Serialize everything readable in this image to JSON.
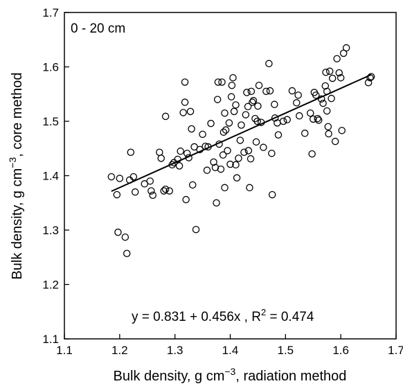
{
  "chart_data": {
    "type": "scatter",
    "panel_label": "0 - 20 cm",
    "xlabel": {
      "main": "Bulk density, g cm",
      "sup": "−3",
      "suffix": ", radiation method"
    },
    "ylabel": {
      "main": "Bulk density, g cm",
      "sup": "−3",
      "suffix": ", core method"
    },
    "xlim": [
      1.1,
      1.7
    ],
    "ylim": [
      1.1,
      1.7
    ],
    "xticks": [
      "1.1",
      "1.2",
      "1.3",
      "1.4",
      "1.5",
      "1.6",
      "1.7"
    ],
    "yticks": [
      "1.1",
      "1.2",
      "1.3",
      "1.4",
      "1.5",
      "1.6",
      "1.7"
    ],
    "grid": false,
    "regression": {
      "intercept": 0.831,
      "slope": 0.456,
      "x_range": [
        1.185,
        1.655
      ]
    },
    "equation": {
      "main": "y = 0.831 + 0.456x , R",
      "sup": "2",
      "suffix": " = 0.474"
    },
    "points": [
      [
        1.185,
        1.398
      ],
      [
        1.195,
        1.365
      ],
      [
        1.2,
        1.395
      ],
      [
        1.197,
        1.296
      ],
      [
        1.21,
        1.287
      ],
      [
        1.213,
        1.257
      ],
      [
        1.218,
        1.392
      ],
      [
        1.22,
        1.443
      ],
      [
        1.225,
        1.398
      ],
      [
        1.228,
        1.37
      ],
      [
        1.245,
        1.385
      ],
      [
        1.255,
        1.39
      ],
      [
        1.257,
        1.372
      ],
      [
        1.26,
        1.364
      ],
      [
        1.272,
        1.443
      ],
      [
        1.275,
        1.432
      ],
      [
        1.28,
        1.372
      ],
      [
        1.283,
        1.375
      ],
      [
        1.283,
        1.509
      ],
      [
        1.29,
        1.372
      ],
      [
        1.295,
        1.42
      ],
      [
        1.298,
        1.424
      ],
      [
        1.305,
        1.43
      ],
      [
        1.308,
        1.418
      ],
      [
        1.31,
        1.445
      ],
      [
        1.315,
        1.516
      ],
      [
        1.318,
        1.535
      ],
      [
        1.318,
        1.572
      ],
      [
        1.32,
        1.356
      ],
      [
        1.322,
        1.441
      ],
      [
        1.325,
        1.433
      ],
      [
        1.328,
        1.518
      ],
      [
        1.33,
        1.486
      ],
      [
        1.332,
        1.383
      ],
      [
        1.335,
        1.453
      ],
      [
        1.338,
        1.301
      ],
      [
        1.345,
        1.448
      ],
      [
        1.35,
        1.476
      ],
      [
        1.355,
        1.454
      ],
      [
        1.358,
        1.41
      ],
      [
        1.36,
        1.453
      ],
      [
        1.365,
        1.496
      ],
      [
        1.37,
        1.425
      ],
      [
        1.373,
        1.415
      ],
      [
        1.375,
        1.35
      ],
      [
        1.377,
        1.54
      ],
      [
        1.378,
        1.572
      ],
      [
        1.38,
        1.458
      ],
      [
        1.383,
        1.412
      ],
      [
        1.385,
        1.572
      ],
      [
        1.387,
        1.438
      ],
      [
        1.388,
        1.48
      ],
      [
        1.39,
        1.515
      ],
      [
        1.39,
        1.378
      ],
      [
        1.392,
        1.484
      ],
      [
        1.395,
        1.446
      ],
      [
        1.398,
        1.497
      ],
      [
        1.4,
        1.421
      ],
      [
        1.402,
        1.545
      ],
      [
        1.403,
        1.566
      ],
      [
        1.405,
        1.58
      ],
      [
        1.407,
        1.518
      ],
      [
        1.41,
        1.53
      ],
      [
        1.41,
        1.42
      ],
      [
        1.412,
        1.396
      ],
      [
        1.415,
        1.432
      ],
      [
        1.418,
        1.465
      ],
      [
        1.42,
        1.493
      ],
      [
        1.425,
        1.443
      ],
      [
        1.428,
        1.512
      ],
      [
        1.43,
        1.553
      ],
      [
        1.432,
        1.527
      ],
      [
        1.433,
        1.446
      ],
      [
        1.435,
        1.378
      ],
      [
        1.437,
        1.431
      ],
      [
        1.438,
        1.555
      ],
      [
        1.44,
        1.535
      ],
      [
        1.442,
        1.538
      ],
      [
        1.445,
        1.505
      ],
      [
        1.447,
        1.462
      ],
      [
        1.449,
        1.5
      ],
      [
        1.45,
        1.528
      ],
      [
        1.452,
        1.566
      ],
      [
        1.456,
        1.498
      ],
      [
        1.46,
        1.452
      ],
      [
        1.465,
        1.555
      ],
      [
        1.47,
        1.606
      ],
      [
        1.472,
        1.556
      ],
      [
        1.475,
        1.441
      ],
      [
        1.476,
        1.365
      ],
      [
        1.48,
        1.531
      ],
      [
        1.481,
        1.506
      ],
      [
        1.485,
        1.497
      ],
      [
        1.487,
        1.475
      ],
      [
        1.496,
        1.5
      ],
      [
        1.503,
        1.503
      ],
      [
        1.512,
        1.556
      ],
      [
        1.52,
        1.534
      ],
      [
        1.523,
        1.548
      ],
      [
        1.525,
        1.51
      ],
      [
        1.535,
        1.478
      ],
      [
        1.545,
        1.515
      ],
      [
        1.548,
        1.44
      ],
      [
        1.55,
        1.504
      ],
      [
        1.552,
        1.553
      ],
      [
        1.555,
        1.548
      ],
      [
        1.558,
        1.505
      ],
      [
        1.56,
        1.502
      ],
      [
        1.565,
        1.541
      ],
      [
        1.568,
        1.533
      ],
      [
        1.572,
        1.565
      ],
      [
        1.573,
        1.59
      ],
      [
        1.575,
        1.519
      ],
      [
        1.575,
        1.555
      ],
      [
        1.577,
        1.49
      ],
      [
        1.578,
        1.477
      ],
      [
        1.58,
        1.592
      ],
      [
        1.583,
        1.542
      ],
      [
        1.585,
        1.579
      ],
      [
        1.59,
        1.463
      ],
      [
        1.593,
        1.615
      ],
      [
        1.597,
        1.589
      ],
      [
        1.6,
        1.58
      ],
      [
        1.602,
        1.483
      ],
      [
        1.605,
        1.625
      ],
      [
        1.61,
        1.635
      ],
      [
        1.65,
        1.571
      ],
      [
        1.653,
        1.58
      ],
      [
        1.655,
        1.582
      ]
    ]
  }
}
